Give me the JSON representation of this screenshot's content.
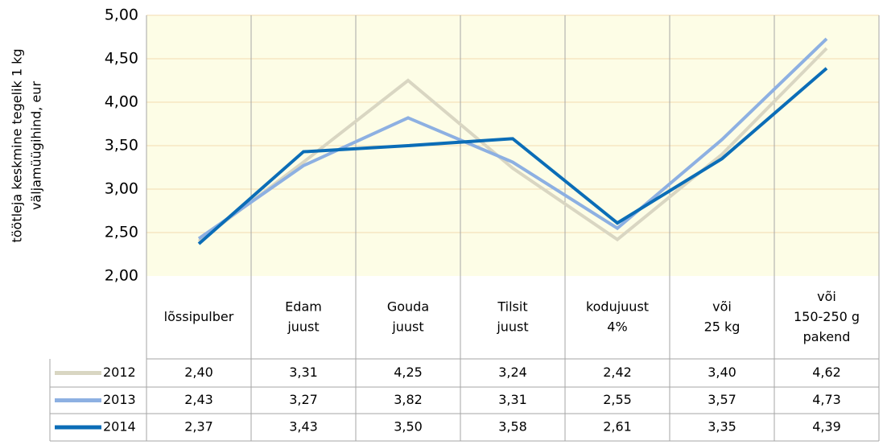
{
  "chart_data": {
    "type": "line",
    "ylabel": [
      "töötleja keskmine tegelik 1 kg",
      "väljamüügihind, eur"
    ],
    "categories": [
      [
        "lõssipulber"
      ],
      [
        "Edam",
        "juust"
      ],
      [
        "Gouda",
        "juust"
      ],
      [
        "Tilsit",
        "juust"
      ],
      [
        "kodujuust",
        "4%"
      ],
      [
        "või",
        "25 kg"
      ],
      [
        "või",
        "150-250 g",
        "pakend"
      ]
    ],
    "series": [
      {
        "name": "2012",
        "color": "#d9d6c2",
        "values": [
          2.4,
          3.31,
          4.25,
          3.24,
          2.42,
          3.4,
          4.62
        ],
        "value_labels": [
          "2,40",
          "3,31",
          "4,25",
          "3,24",
          "2,42",
          "3,40",
          "4,62"
        ]
      },
      {
        "name": "2013",
        "color": "#8db0e2",
        "values": [
          2.43,
          3.27,
          3.82,
          3.31,
          2.55,
          3.57,
          4.73
        ],
        "value_labels": [
          "2,43",
          "3,27",
          "3,82",
          "3,31",
          "2,55",
          "3,57",
          "4,73"
        ]
      },
      {
        "name": "2014",
        "color": "#0b6db7",
        "values": [
          2.37,
          3.43,
          3.5,
          3.58,
          2.61,
          3.35,
          4.39
        ],
        "value_labels": [
          "2,37",
          "3,43",
          "3,50",
          "3,58",
          "2,61",
          "3,35",
          "4,39"
        ]
      }
    ],
    "ylim": [
      2,
      5
    ],
    "yticks": [
      {
        "value": 2,
        "label": "2,00"
      },
      {
        "value": 2.5,
        "label": "2,50"
      },
      {
        "value": 3,
        "label": "3,00"
      },
      {
        "value": 3.5,
        "label": "3,50"
      },
      {
        "value": 4,
        "label": "4,00"
      },
      {
        "value": 4.5,
        "label": "4,50"
      },
      {
        "value": 5,
        "label": "5,00"
      }
    ],
    "grid": true,
    "background": "#fdfde6",
    "grid_color": "#f3dcb0"
  }
}
